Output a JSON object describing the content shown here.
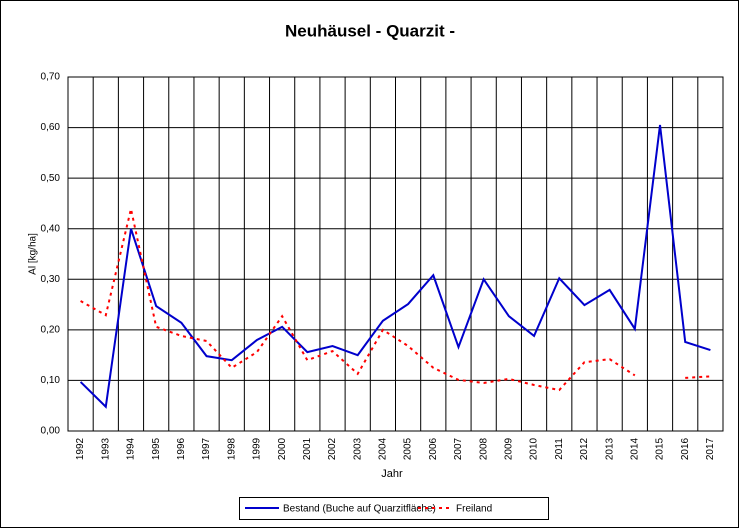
{
  "chart_data": {
    "type": "line",
    "title": "Neuhäusel - Quarzit -",
    "x_label": "Jahr",
    "y_label": "Al [kg/ha]",
    "categories": [
      "1992",
      "1993",
      "1994",
      "1995",
      "1996",
      "1997",
      "1998",
      "1999",
      "2000",
      "2001",
      "2002",
      "2003",
      "2004",
      "2005",
      "2006",
      "2007",
      "2008",
      "2009",
      "2010",
      "2011",
      "2012",
      "2013",
      "2014",
      "2015",
      "2016",
      "2017"
    ],
    "series": [
      {
        "name": "Bestand (Buche auf Quarzitfläche)",
        "color": "#0000cc",
        "dash": "solid",
        "values": [
          0.097,
          0.048,
          0.4,
          0.247,
          0.214,
          0.148,
          0.14,
          0.18,
          0.206,
          0.156,
          0.168,
          0.15,
          0.218,
          0.251,
          0.308,
          0.166,
          0.3,
          0.227,
          0.188,
          0.302,
          0.249,
          0.279,
          0.202,
          0.605,
          0.176,
          0.16
        ]
      },
      {
        "name": "Freiland",
        "color": "#ff0000",
        "dash": "dotted",
        "values": [
          0.257,
          0.229,
          0.439,
          0.206,
          0.188,
          0.178,
          0.125,
          0.156,
          0.227,
          0.14,
          0.158,
          0.113,
          0.2,
          0.168,
          0.125,
          0.101,
          0.095,
          0.103,
          0.091,
          0.081,
          0.136,
          0.142,
          0.11,
          null,
          0.105,
          0.108
        ]
      }
    ],
    "ylim": [
      0,
      0.7
    ],
    "yticks": [
      {
        "value": 0,
        "label": "0,00"
      },
      {
        "value": 0.1,
        "label": "0,10"
      },
      {
        "value": 0.2,
        "label": "0,20"
      },
      {
        "value": 0.3,
        "label": "0,30"
      },
      {
        "value": 0.4,
        "label": "0,40"
      },
      {
        "value": 0.5,
        "label": "0,50"
      },
      {
        "value": 0.6,
        "label": "0,60"
      },
      {
        "value": 0.7,
        "label": "0,70"
      }
    ],
    "grid": true,
    "legend": "bottom"
  }
}
